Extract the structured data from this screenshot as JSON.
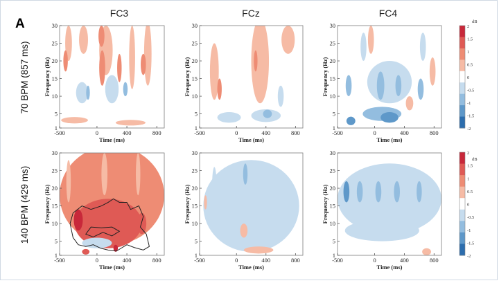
{
  "chart_data": {
    "type": "heatmap",
    "panel_letter": "A",
    "columns": [
      "FC3",
      "FCz",
      "FC4"
    ],
    "rows": [
      "70 BPM (857 ms)",
      "140 BPM (429 ms)"
    ],
    "xlabel": "Time (ms)",
    "ylabel": "Frequency (Hz)",
    "xlim": [
      -500,
      900
    ],
    "ylim": [
      1,
      30
    ],
    "xticks": [
      "-500",
      "0",
      "400",
      "800"
    ],
    "yticks": [
      "1",
      "5",
      "10",
      "15",
      "20",
      "25",
      "30"
    ],
    "colorbar": {
      "unit": "dB",
      "ticks": [
        "2",
        "1.5",
        "1",
        "0.5",
        "0",
        "-0.5",
        "-1",
        "-1.5",
        "-2"
      ],
      "colors": [
        "#c8283a",
        "#df5a55",
        "#ee8c74",
        "#f6bba5",
        "#ffffff",
        "#c6dcee",
        "#93bddf",
        "#5e98c9",
        "#2c6dad"
      ]
    },
    "panels": [
      {
        "row": 0,
        "col": 0,
        "electrode": "FC3",
        "blobs": [
          {
            "t": -380,
            "f": 25,
            "rt": 45,
            "rf": 5,
            "v": 0.5
          },
          {
            "t": -180,
            "f": 26,
            "rt": 60,
            "rf": 4,
            "v": 0.5
          },
          {
            "t": 120,
            "f": 23,
            "rt": 90,
            "rf": 7,
            "v": 0.6
          },
          {
            "t": 470,
            "f": 21,
            "rt": 40,
            "rf": 9,
            "v": 0.5
          },
          {
            "t": 680,
            "f": 22,
            "rt": 50,
            "rf": 9,
            "v": 0.5
          },
          {
            "t": -420,
            "f": 20,
            "rt": 30,
            "rf": 3,
            "v": 1.0
          },
          {
            "t": 70,
            "f": 18,
            "rt": 40,
            "rf": 5,
            "v": 1.0
          },
          {
            "t": 300,
            "f": 18,
            "rt": 30,
            "rf": 4,
            "v": 0.8
          },
          {
            "t": 620,
            "f": 19,
            "rt": 35,
            "rf": 3,
            "v": 0.8
          },
          {
            "t": 60,
            "f": 27,
            "rt": 40,
            "rf": 3,
            "v": 1.0
          },
          {
            "t": -200,
            "f": 11,
            "rt": 80,
            "rf": 3,
            "v": -0.5
          },
          {
            "t": 200,
            "f": 12,
            "rt": 90,
            "rf": 4,
            "v": -0.5
          },
          {
            "t": 380,
            "f": 12,
            "rt": 30,
            "rf": 2,
            "v": -1.0
          },
          {
            "t": -120,
            "f": 11,
            "rt": 25,
            "rf": 2,
            "v": -0.8
          },
          {
            "t": -300,
            "f": 3.2,
            "rt": 180,
            "rf": 0.9,
            "v": 0.5
          },
          {
            "t": 450,
            "f": 2.5,
            "rt": 200,
            "rf": 0.8,
            "v": 0.4
          }
        ]
      },
      {
        "row": 0,
        "col": 1,
        "electrode": "FCz",
        "blobs": [
          {
            "t": 320,
            "f": 20,
            "rt": 120,
            "rf": 12,
            "v": 0.4
          },
          {
            "t": -300,
            "f": 17,
            "rt": 60,
            "rf": 8,
            "v": 0.4
          },
          {
            "t": -230,
            "f": 12,
            "rt": 30,
            "rf": 3,
            "v": 1.0
          },
          {
            "t": 260,
            "f": 20,
            "rt": 25,
            "rf": 3,
            "v": 1.0
          },
          {
            "t": 700,
            "f": 26,
            "rt": 90,
            "rf": 4,
            "v": 0.4
          },
          {
            "t": -100,
            "f": 4,
            "rt": 160,
            "rf": 1.5,
            "v": -0.6
          },
          {
            "t": 400,
            "f": 4.5,
            "rt": 200,
            "rf": 1.8,
            "v": -0.5
          },
          {
            "t": 420,
            "f": 5,
            "rt": 60,
            "rf": 1.2,
            "v": -1.0
          },
          {
            "t": 600,
            "f": 10,
            "rt": 40,
            "rf": 3,
            "v": -0.4
          }
        ]
      },
      {
        "row": 0,
        "col": 2,
        "electrode": "FC4",
        "blobs": [
          {
            "t": 200,
            "f": 14,
            "rt": 300,
            "rf": 6,
            "v": -0.6
          },
          {
            "t": -350,
            "f": 13,
            "rt": 40,
            "rf": 3,
            "v": -1.2
          },
          {
            "t": 80,
            "f": 13,
            "rt": 50,
            "rf": 4,
            "v": -1.2
          },
          {
            "t": 320,
            "f": 13,
            "rt": 40,
            "rf": 3,
            "v": -1.0
          },
          {
            "t": 620,
            "f": 12,
            "rt": 40,
            "rf": 3,
            "v": -1.0
          },
          {
            "t": 100,
            "f": 5,
            "rt": 260,
            "rf": 2,
            "v": -0.9
          },
          {
            "t": 200,
            "f": 4,
            "rt": 120,
            "rf": 1.5,
            "v": -1.6
          },
          {
            "t": -320,
            "f": 3,
            "rt": 60,
            "rf": 1.2,
            "v": -1.4
          },
          {
            "t": -150,
            "f": 24,
            "rt": 40,
            "rf": 4,
            "v": -0.6
          },
          {
            "t": 650,
            "f": 24,
            "rt": 40,
            "rf": 4,
            "v": -0.6
          },
          {
            "t": -50,
            "f": 26,
            "rt": 40,
            "rf": 4,
            "v": 0.4
          },
          {
            "t": 470,
            "f": 8,
            "rt": 50,
            "rf": 2,
            "v": 0.6
          },
          {
            "t": 780,
            "f": 17,
            "rt": 40,
            "rf": 4,
            "v": 0.4
          }
        ]
      },
      {
        "row": 1,
        "col": 0,
        "electrode": "FC3",
        "significance": true,
        "blobs": [
          {
            "t": 200,
            "f": 18,
            "rt": 700,
            "rf": 14,
            "v": 0.8
          },
          {
            "t": 150,
            "f": 10,
            "rt": 450,
            "rf": 7,
            "v": 1.3
          },
          {
            "t": -250,
            "f": 11,
            "rt": 60,
            "rf": 3,
            "v": 1.8
          },
          {
            "t": 350,
            "f": 11,
            "rt": 60,
            "rf": 3,
            "v": 1.7
          },
          {
            "t": 600,
            "f": 10,
            "rt": 60,
            "rf": 3,
            "v": 1.6
          },
          {
            "t": -380,
            "f": 22,
            "rt": 30,
            "rf": 6,
            "v": 0.6
          },
          {
            "t": 100,
            "f": 24,
            "rt": 40,
            "rf": 6,
            "v": 0.6
          },
          {
            "t": 550,
            "f": 24,
            "rt": 30,
            "rf": 6,
            "v": 0.6
          },
          {
            "t": 0,
            "f": 4.5,
            "rt": 200,
            "rf": 1.5,
            "v": -0.4
          },
          {
            "t": 250,
            "f": 3,
            "rt": 30,
            "rf": 1,
            "v": 1.9
          },
          {
            "t": -150,
            "f": 2,
            "rt": 50,
            "rf": 0.8,
            "v": 1.6
          }
        ]
      },
      {
        "row": 1,
        "col": 1,
        "electrode": "FCz",
        "blobs": [
          {
            "t": 200,
            "f": 15,
            "rt": 650,
            "rf": 13,
            "v": -0.4
          },
          {
            "t": -300,
            "f": 21,
            "rt": 30,
            "rf": 5,
            "v": -0.7
          },
          {
            "t": 120,
            "f": 24,
            "rt": 30,
            "rf": 3,
            "v": -0.9
          },
          {
            "t": 600,
            "f": 20,
            "rt": 30,
            "rf": 4,
            "v": -0.7
          },
          {
            "t": -420,
            "f": 16,
            "rt": 20,
            "rf": 2,
            "v": 0.5
          },
          {
            "t": 100,
            "f": 8,
            "rt": 50,
            "rf": 2,
            "v": 0.4
          },
          {
            "t": 300,
            "f": 2.5,
            "rt": 200,
            "rf": 1,
            "v": 0.3
          }
        ]
      },
      {
        "row": 1,
        "col": 2,
        "electrode": "FC4",
        "blobs": [
          {
            "t": 200,
            "f": 17,
            "rt": 700,
            "rf": 10,
            "v": -0.6
          },
          {
            "t": -380,
            "f": 19,
            "rt": 40,
            "rf": 3,
            "v": -1.4
          },
          {
            "t": -200,
            "f": 19,
            "rt": 40,
            "rf": 3,
            "v": -1.1
          },
          {
            "t": 50,
            "f": 19,
            "rt": 40,
            "rf": 3,
            "v": -1.2
          },
          {
            "t": 300,
            "f": 19,
            "rt": 40,
            "rf": 3,
            "v": -1.0
          },
          {
            "t": 600,
            "f": 19,
            "rt": 35,
            "rf": 3,
            "v": -1.1
          },
          {
            "t": 100,
            "f": 8,
            "rt": 500,
            "rf": 3,
            "v": -0.4
          },
          {
            "t": 300,
            "f": 2.5,
            "rt": 450,
            "rf": 1.5,
            "v": 0.25
          },
          {
            "t": 700,
            "f": 2,
            "rt": 60,
            "rf": 1,
            "v": 0.6
          }
        ]
      }
    ]
  }
}
